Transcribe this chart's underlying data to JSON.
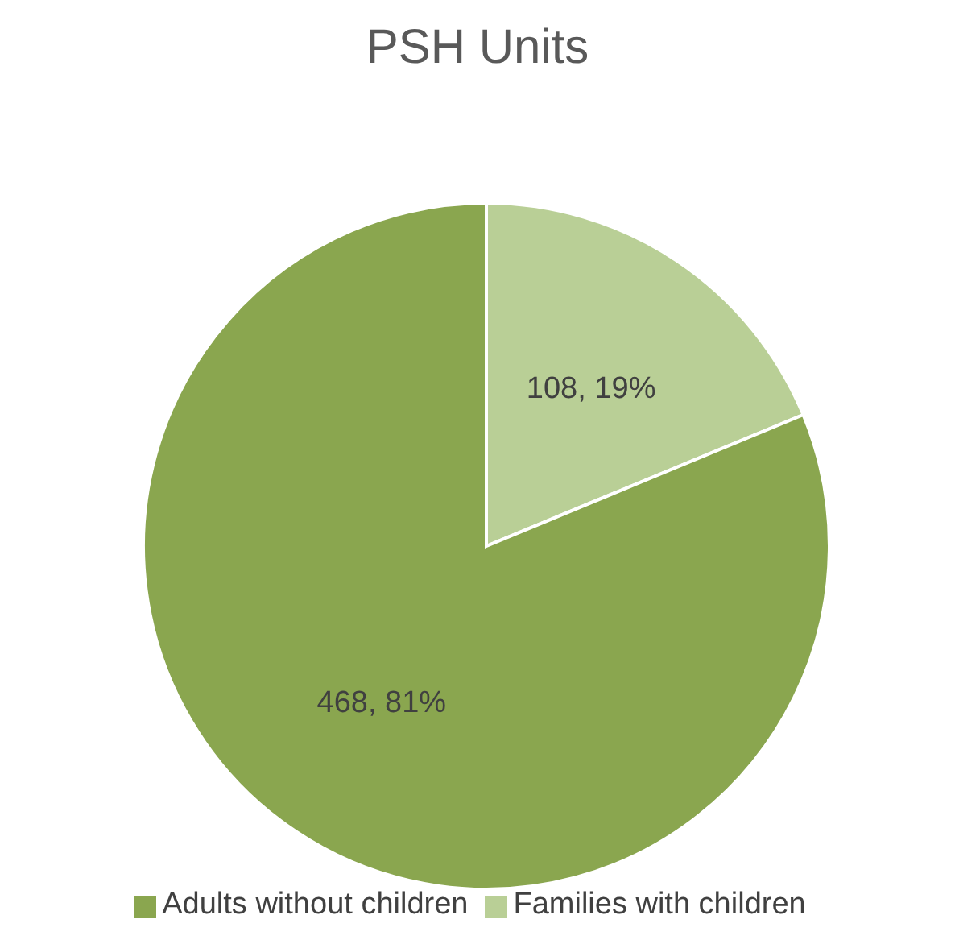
{
  "chart_data": {
    "type": "pie",
    "title": "PSH Units",
    "categories": [
      "Families with children",
      "Adults without children"
    ],
    "values": [
      108,
      468
    ],
    "colors": [
      "#b9cf96",
      "#8aa64f"
    ],
    "value_labels": [
      "108, 19%",
      "468, 81%"
    ],
    "legend": "bottom"
  }
}
